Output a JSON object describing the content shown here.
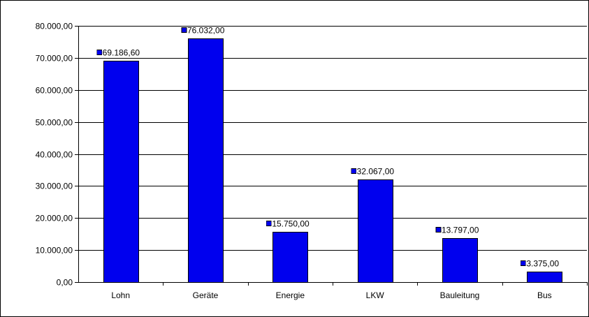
{
  "colors": {
    "bar_fill": "#0000ee",
    "background": "#ffffff",
    "lines": "#000000"
  },
  "chart_data": {
    "type": "bar",
    "title": "",
    "xlabel": "",
    "ylabel": "",
    "categories": [
      "Lohn",
      "Geräte",
      "Energie",
      "LKW",
      "Bauleitung",
      "Bus"
    ],
    "values": [
      69186.6,
      76032.0,
      15750.0,
      32067.0,
      13797.0,
      3375.0
    ],
    "value_labels": [
      "69.186,60",
      "76.032,00",
      "15.750,00",
      "32.067,00",
      "13.797,00",
      "3.375,00"
    ],
    "y_ticks": [
      0,
      10000,
      20000,
      30000,
      40000,
      50000,
      60000,
      70000,
      80000
    ],
    "y_tick_labels": [
      "0,00",
      "10.000,00",
      "20.000,00",
      "30.000,00",
      "40.000,00",
      "50.000,00",
      "60.000,00",
      "70.000,00",
      "80.000,00"
    ],
    "ylim": [
      0,
      80000
    ],
    "grid": true,
    "legend": "none"
  }
}
